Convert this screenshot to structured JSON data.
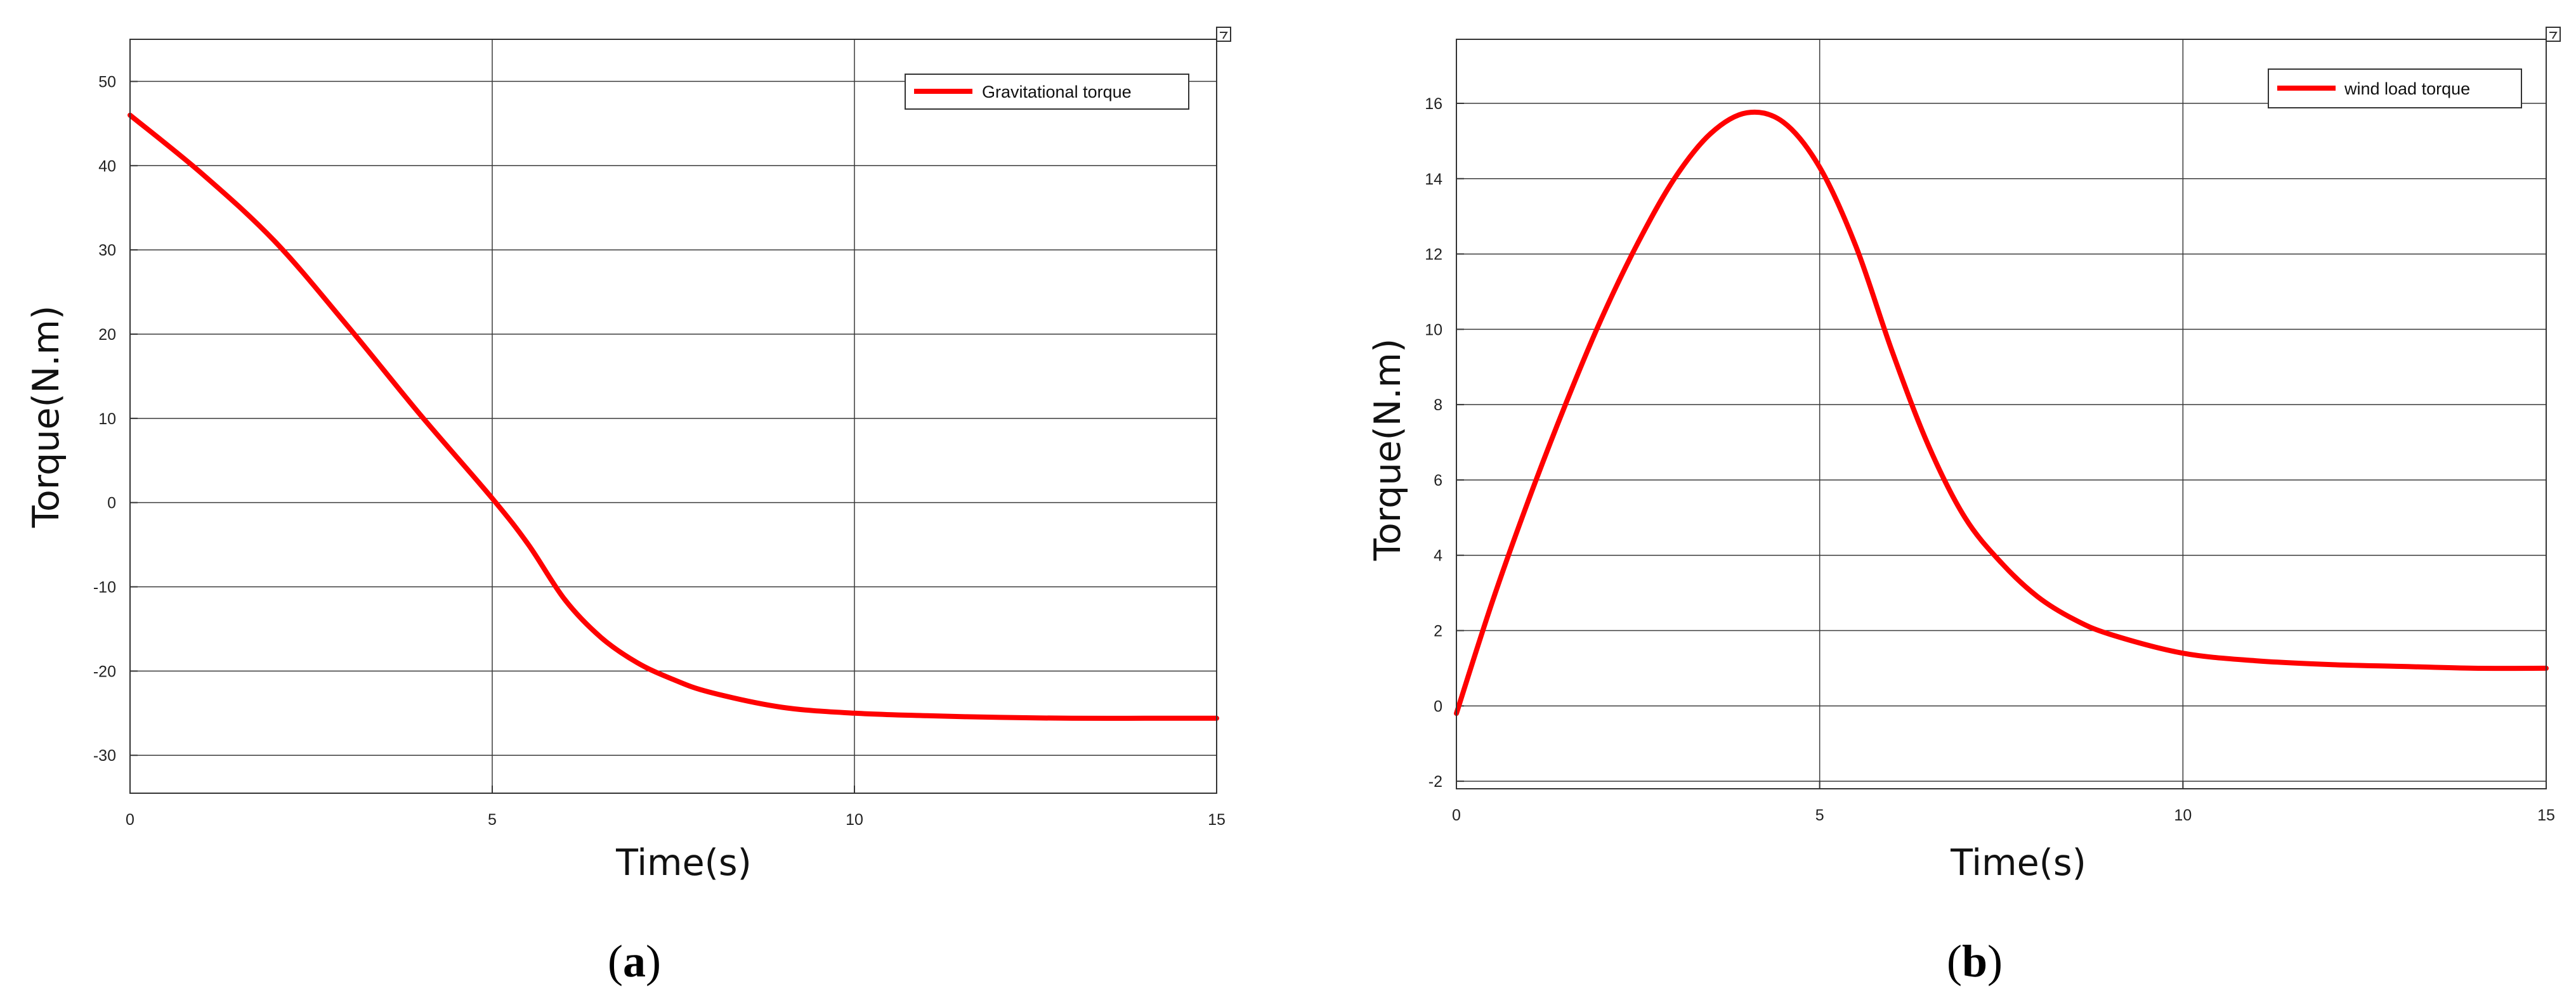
{
  "colors": {
    "series": "#ff0000",
    "grid": "#3a3a3a",
    "background": "#ffffff"
  },
  "chart_data": [
    {
      "type": "line",
      "title": "",
      "xlabel": "Time(s)",
      "ylabel": "Torque(N.m)",
      "xlim": [
        0,
        15
      ],
      "ylim": [
        -34.5,
        55
      ],
      "xticks": [
        0,
        5,
        10,
        15
      ],
      "xtick_labels": [
        "0",
        "5",
        "10",
        "15"
      ],
      "yticks": [
        -30,
        -20,
        -10,
        0,
        10,
        20,
        30,
        40,
        50
      ],
      "ytick_labels": [
        "-30",
        "-20",
        "-10",
        "0",
        "10",
        "20",
        "30",
        "40",
        "50"
      ],
      "grid": true,
      "legend_position": "top-right",
      "caption_letter": "a",
      "series": [
        {
          "name": "Gravitational torque",
          "color": "#ff0000",
          "x": [
            0,
            1,
            2,
            3,
            4,
            5,
            5.5,
            6,
            6.5,
            7,
            7.5,
            8,
            9,
            10,
            11,
            12,
            13,
            14,
            15
          ],
          "y": [
            46,
            39,
            31,
            21,
            10.5,
            0.5,
            -5,
            -11.5,
            -16,
            -19,
            -21,
            -22.5,
            -24.3,
            -25,
            -25.3,
            -25.5,
            -25.6,
            -25.6,
            -25.6
          ]
        }
      ]
    },
    {
      "type": "line",
      "title": "",
      "xlabel": "Time(s)",
      "ylabel": "Torque(N.m)",
      "xlim": [
        0,
        15
      ],
      "ylim": [
        -2.2,
        17.7
      ],
      "xticks": [
        0,
        5,
        10,
        15
      ],
      "xtick_labels": [
        "0",
        "5",
        "10",
        "15"
      ],
      "yticks": [
        -2,
        0,
        2,
        4,
        6,
        8,
        10,
        12,
        14,
        16
      ],
      "ytick_labels": [
        "-2",
        "0",
        "2",
        "4",
        "6",
        "8",
        "10",
        "12",
        "14",
        "16"
      ],
      "grid": true,
      "legend_position": "top-right",
      "caption_letter": "b",
      "series": [
        {
          "name": "wind load torque",
          "color": "#ff0000",
          "x": [
            0,
            0.5,
            1,
            1.5,
            2,
            2.5,
            3,
            3.5,
            4,
            4.5,
            5,
            5.5,
            6,
            6.5,
            7,
            7.5,
            8,
            8.5,
            9,
            10,
            11,
            12,
            13,
            14,
            15
          ],
          "y": [
            -0.2,
            2.8,
            5.5,
            8.0,
            10.3,
            12.3,
            14.0,
            15.2,
            15.75,
            15.5,
            14.3,
            12.2,
            9.4,
            6.9,
            5.0,
            3.8,
            2.9,
            2.3,
            1.9,
            1.4,
            1.2,
            1.1,
            1.05,
            1.0,
            1.0
          ]
        }
      ]
    }
  ]
}
